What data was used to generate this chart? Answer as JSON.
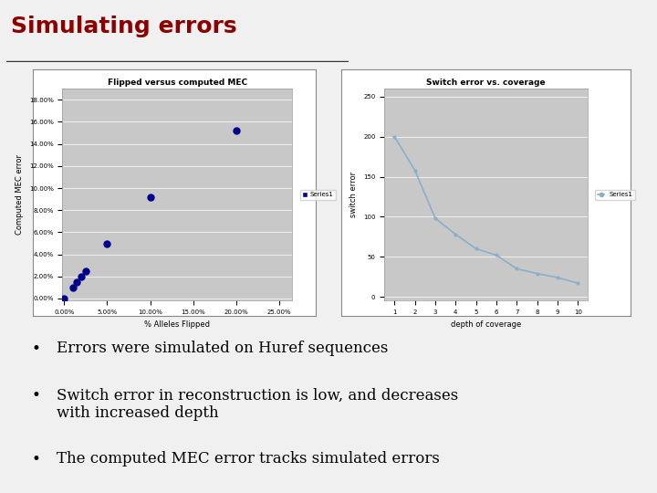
{
  "title": "Simulating errors",
  "title_color": "#8B0000",
  "title_fontsize": 18,
  "plot_bg_color": "#C8C8C8",
  "slide_bg": "#F0F0F0",
  "chart_outer_bg": "#FFFFFF",
  "scatter_title": "Flipped versus computed MEC",
  "scatter_xlabel": "% Alleles Flipped",
  "scatter_ylabel": "Computed MEC error",
  "scatter_x": [
    0.0,
    0.01,
    0.015,
    0.02,
    0.025,
    0.05,
    0.1,
    0.2
  ],
  "scatter_y": [
    0.0,
    0.01,
    0.015,
    0.02,
    0.025,
    0.05,
    0.092,
    0.152
  ],
  "scatter_xlim": [
    -0.002,
    0.265
  ],
  "scatter_ylim": [
    -0.002,
    0.19
  ],
  "scatter_xticks": [
    0.0,
    0.05,
    0.1,
    0.15,
    0.2,
    0.25
  ],
  "scatter_yticks": [
    0.0,
    0.02,
    0.04,
    0.06,
    0.08,
    0.1,
    0.12,
    0.14,
    0.16,
    0.18
  ],
  "scatter_point_color": "#00008B",
  "scatter_legend_label": "Series1",
  "line_title": "Switch error vs. coverage",
  "line_xlabel": "depth of coverage",
  "line_ylabel": "switch error",
  "line_x": [
    1,
    2,
    3,
    4,
    5,
    6,
    7,
    8,
    9,
    10
  ],
  "line_y": [
    200,
    158,
    98,
    78,
    60,
    52,
    35,
    29,
    24,
    17
  ],
  "line_xlim": [
    0.5,
    10.5
  ],
  "line_ylim": [
    -5,
    260
  ],
  "line_xticks": [
    1,
    2,
    3,
    4,
    5,
    6,
    7,
    8,
    9,
    10
  ],
  "line_yticks": [
    0,
    50,
    100,
    150,
    200,
    250
  ],
  "line_color": "#8AAFC8",
  "line_legend_label": "Series1",
  "bullets": [
    "Errors were simulated on Huref sequences",
    "Switch error in reconstruction is low, and decreases\nwith increased depth",
    "The computed MEC error tracks simulated errors"
  ],
  "bullet_fontsize": 12,
  "bullet_color": "#000000"
}
